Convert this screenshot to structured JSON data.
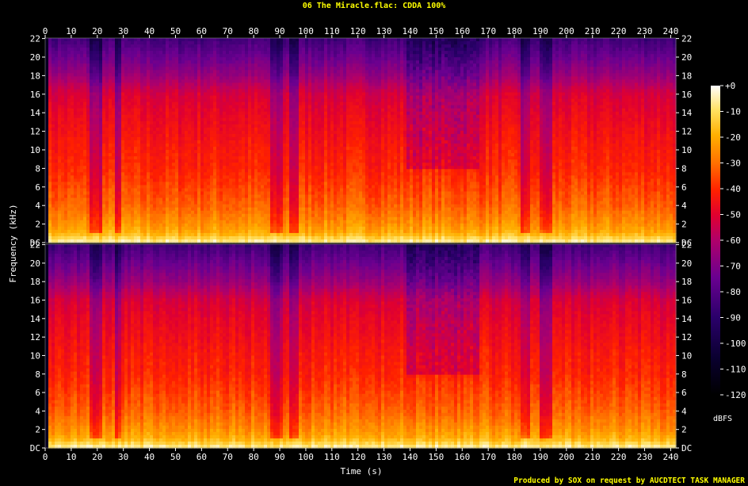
{
  "header": {
    "title": "06 The Miracle.flac: CDDA 100%"
  },
  "footer": {
    "credit": "Produced by SOX on request by AUCDTECT TASK MANAGER"
  },
  "colors": {
    "title": "#ffff00",
    "credit": "#ffff00",
    "axis_text": "#ffffff",
    "background": "#000000",
    "tick_line": "#ffffff"
  },
  "chart_data": {
    "type": "heatmap",
    "title": "06 The Miracle.flac: CDDA 100%",
    "xlabel": "Time (s)",
    "ylabel": "Frequency (kHz)",
    "xlim": [
      0,
      242
    ],
    "ylim": [
      0,
      22.05
    ],
    "x_ticks": [
      "0",
      "10",
      "20",
      "30",
      "40",
      "50",
      "60",
      "70",
      "80",
      "90",
      "100",
      "110",
      "120",
      "130",
      "140",
      "150",
      "160",
      "170",
      "180",
      "190",
      "200",
      "210",
      "220",
      "230",
      "240"
    ],
    "x_tick_values": [
      0,
      10,
      20,
      30,
      40,
      50,
      60,
      70,
      80,
      90,
      100,
      110,
      120,
      130,
      140,
      150,
      160,
      170,
      180,
      190,
      200,
      210,
      220,
      230,
      240
    ],
    "y_ticks": [
      "DC",
      "2",
      "4",
      "6",
      "8",
      "10",
      "12",
      "14",
      "16",
      "18",
      "20",
      "22"
    ],
    "y_tick_values": [
      0,
      2,
      4,
      6,
      8,
      10,
      12,
      14,
      16,
      18,
      20,
      22
    ],
    "channels": [
      "left",
      "right"
    ],
    "colorbar": {
      "label": "dBFS",
      "range": [
        -120,
        0
      ],
      "ticks": [
        "+0",
        "-10",
        "-20",
        "-30",
        "-40",
        "-50",
        "-60",
        "-70",
        "-80",
        "-90",
        "-100",
        "-110",
        "-120"
      ],
      "tick_values": [
        0,
        -10,
        -20,
        -30,
        -40,
        -50,
        -60,
        -70,
        -80,
        -90,
        -100,
        -110,
        -120
      ]
    },
    "spectral_profile_khz_dbfs": [
      [
        0,
        -5
      ],
      [
        1,
        -20
      ],
      [
        2,
        -25
      ],
      [
        4,
        -32
      ],
      [
        6,
        -36
      ],
      [
        8,
        -40
      ],
      [
        10,
        -42
      ],
      [
        12,
        -45
      ],
      [
        14,
        -48
      ],
      [
        16,
        -52
      ],
      [
        17,
        -58
      ],
      [
        18,
        -65
      ],
      [
        20,
        -75
      ],
      [
        22,
        -85
      ]
    ],
    "quiet_segments_s": [
      [
        17,
        22
      ],
      [
        27,
        29
      ],
      [
        86,
        91
      ],
      [
        94,
        97
      ],
      [
        183,
        186
      ],
      [
        190,
        194
      ]
    ],
    "sparse_high_freq_region_s": [
      139,
      167
    ]
  }
}
